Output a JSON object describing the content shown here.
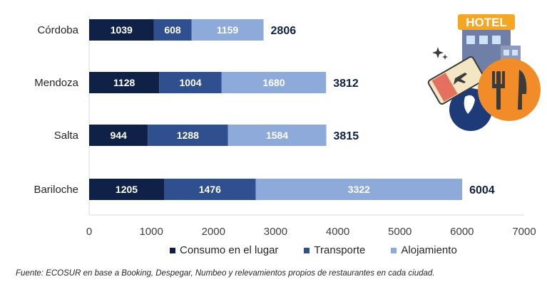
{
  "chart_data": {
    "type": "bar",
    "orientation": "horizontal",
    "stacked": true,
    "categories": [
      "Córdoba",
      "Mendoza",
      "Salta",
      "Bariloche"
    ],
    "series": [
      {
        "name": "Consumo en el lugar",
        "values": [
          1039,
          1128,
          944,
          1205
        ]
      },
      {
        "name": "Transporte",
        "values": [
          608,
          1004,
          1288,
          1476
        ]
      },
      {
        "name": "Alojamiento",
        "values": [
          1159,
          1680,
          1584,
          3322
        ]
      }
    ],
    "totals": [
      2806,
      3812,
      3815,
      6004
    ],
    "xlim": [
      0,
      7000
    ],
    "xticks": [
      0,
      1000,
      2000,
      3000,
      4000,
      5000,
      6000,
      7000
    ],
    "legend_position": "bottom",
    "grid": false
  },
  "colors": {
    "series": [
      "#0f2147",
      "#2f4f8f",
      "#8eaadb"
    ],
    "total_label": "#0f2147"
  },
  "source_note": "Fuente: ECOSUR en base a Booking, Despegar, Numbeo y relevamientos propios de restaurantes en cada ciudad.",
  "illustration": {
    "hotel_sign": "HOTEL",
    "icons": [
      "hotel-icon",
      "plane-ticket-icon",
      "fork-knife-icon",
      "map-pin-icon"
    ]
  }
}
